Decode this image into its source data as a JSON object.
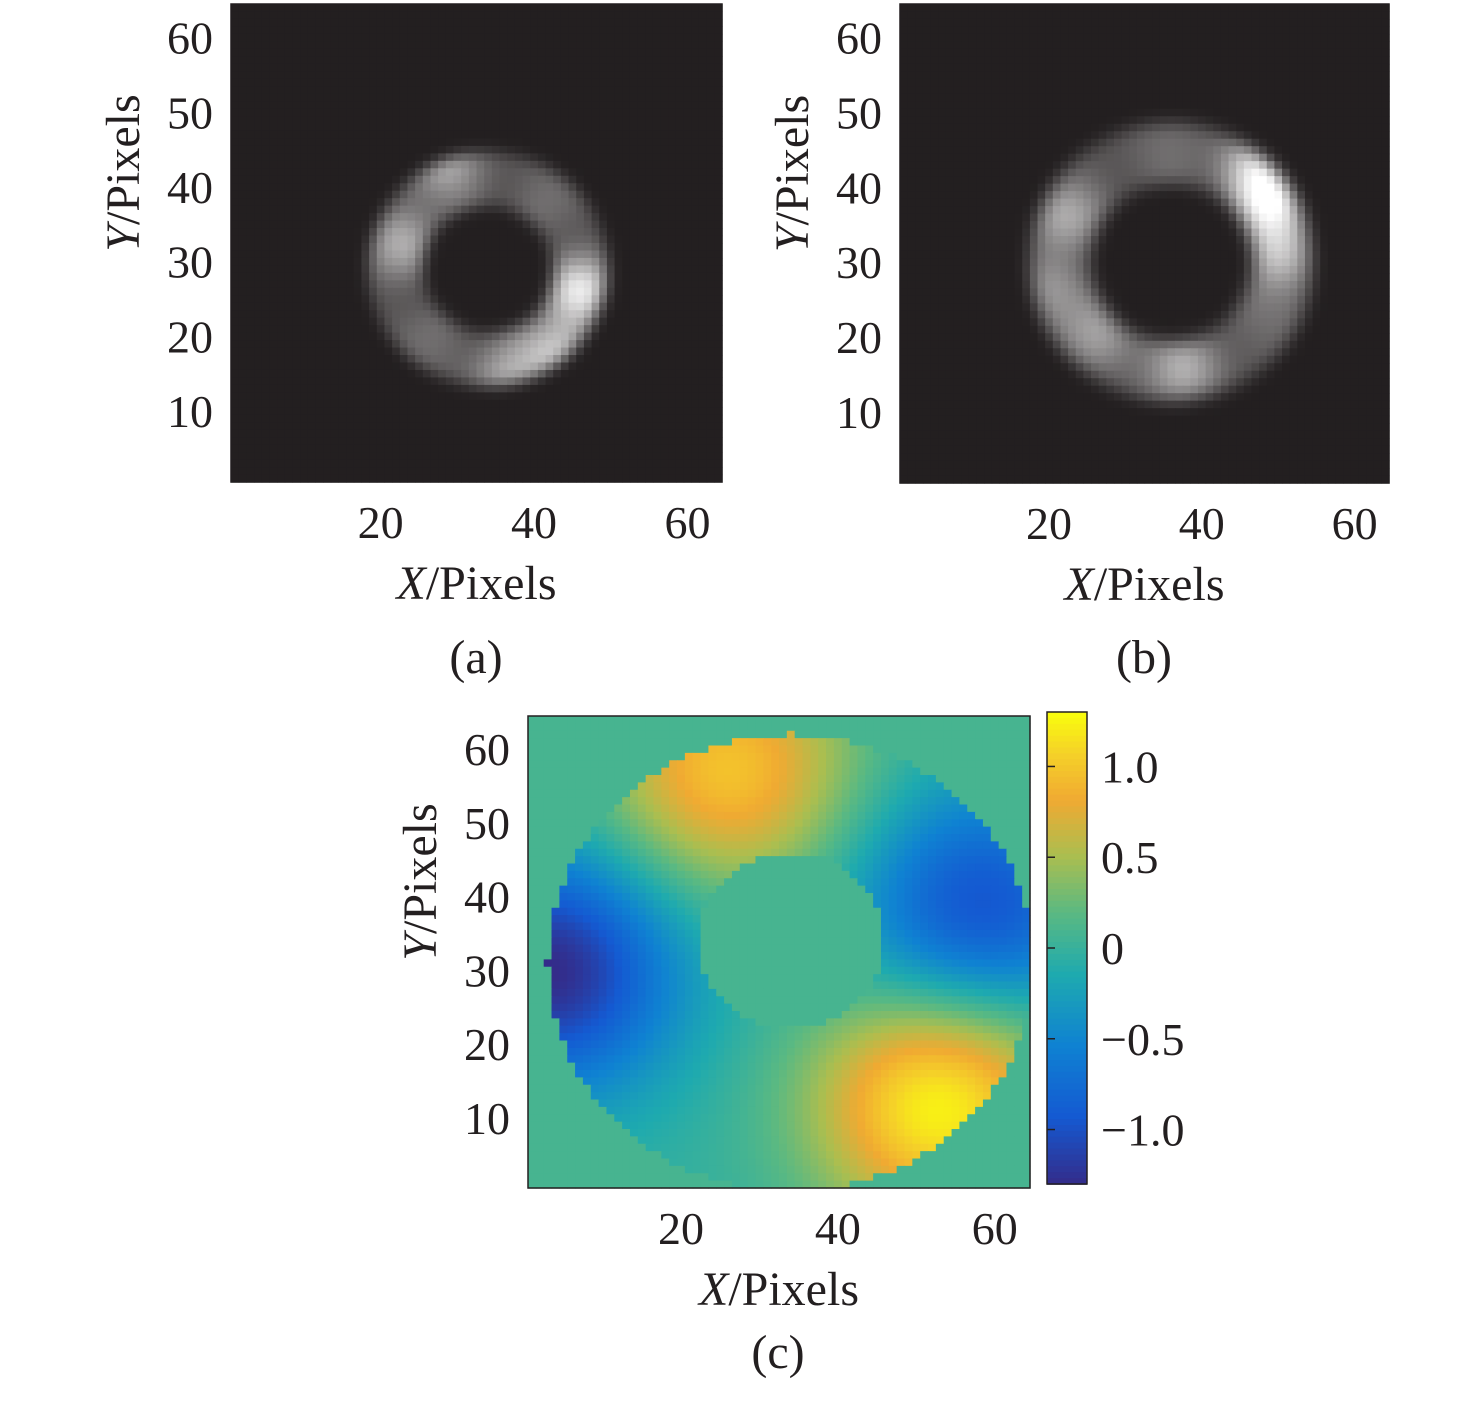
{
  "chart_data": [
    {
      "type": "heatmap",
      "caption": "(a)",
      "xlabel_var": "X",
      "xlabel_unit": "/Pixels",
      "ylabel_var": "Y",
      "ylabel_unit": "/Pixels",
      "xlim": [
        1,
        64
      ],
      "ylim": [
        1,
        64
      ],
      "xticks": [
        20,
        40,
        60
      ],
      "yticks": [
        10,
        20,
        30,
        40,
        50,
        60
      ],
      "colormap": "gray",
      "background_color": "#231f20",
      "ring": {
        "center": [
          34,
          29
        ],
        "inner_radius": 8,
        "outer_radius": 16
      },
      "bright_spots": [
        [
          46,
          26,
          1.0
        ],
        [
          43,
          18,
          0.8
        ],
        [
          28,
          44,
          0.6
        ],
        [
          23,
          33,
          0.55
        ],
        [
          36,
          14,
          0.55
        ]
      ]
    },
    {
      "type": "heatmap",
      "caption": "(b)",
      "xlabel_var": "X",
      "xlabel_unit": "/Pixels",
      "ylabel_var": "Y",
      "ylabel_unit": "/Pixels",
      "xlim": [
        1,
        64
      ],
      "ylim": [
        1,
        64
      ],
      "xticks": [
        20,
        40,
        60
      ],
      "yticks": [
        10,
        20,
        30,
        40,
        50,
        60
      ],
      "colormap": "gray",
      "background_color": "#231f20",
      "ring": {
        "center": [
          36,
          30
        ],
        "inner_radius": 10,
        "outer_radius": 19
      },
      "bright_spots": [
        [
          49,
          38,
          1.0
        ],
        [
          47,
          43,
          0.9
        ],
        [
          50,
          31,
          0.85
        ],
        [
          22,
          36,
          0.5
        ],
        [
          27,
          20,
          0.5
        ],
        [
          38,
          16,
          0.55
        ],
        [
          20,
          27,
          0.45
        ]
      ]
    },
    {
      "type": "heatmap",
      "caption": "(c)",
      "xlabel_var": "X",
      "xlabel_unit": "/Pixels",
      "ylabel_var": "Y",
      "ylabel_unit": "/Pixels",
      "xlim": [
        1,
        64
      ],
      "ylim": [
        1,
        64
      ],
      "xticks": [
        20,
        40,
        60
      ],
      "yticks": [
        10,
        20,
        30,
        40,
        50,
        60
      ],
      "colormap": "parula",
      "colorbar_ticks": [
        "1.0",
        "0.5",
        "0",
        "−0.5",
        "−1.0"
      ],
      "colorbar_tick_values": [
        1.0,
        0.5,
        0,
        -0.5,
        -1.0
      ],
      "colorbar_range": [
        -1.3,
        1.3
      ],
      "background_value": 0.1,
      "aperture": {
        "center": [
          34,
          31
        ],
        "radius": 31
      },
      "central_obscuration": {
        "center": [
          34,
          34
        ],
        "radius": 12
      },
      "phase_extremes": {
        "max": [
          [
            26,
            57,
            1.0
          ],
          [
            53,
            12,
            1.3
          ]
        ],
        "min": [
          [
            3,
            30,
            -1.3
          ],
          [
            58,
            38,
            -1.0
          ]
        ]
      }
    }
  ]
}
